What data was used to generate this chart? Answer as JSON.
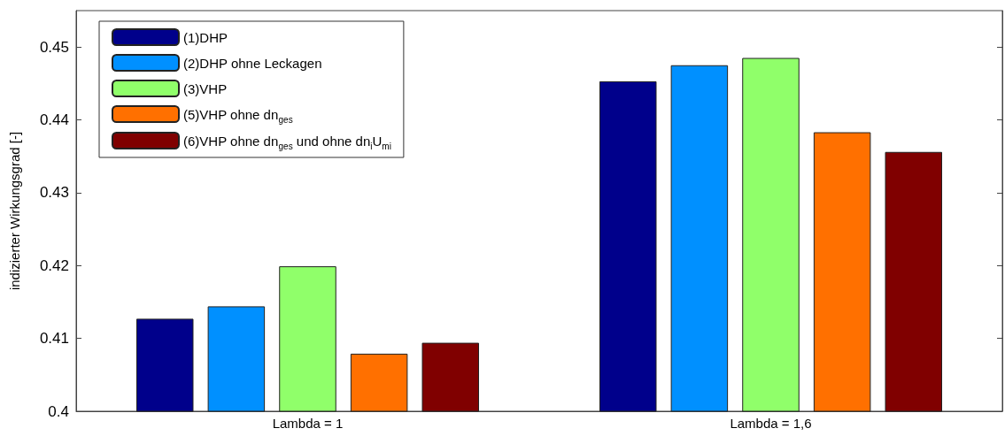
{
  "chart_data": {
    "type": "bar",
    "ylabel": "indizierter Wirkungsgrad [-]",
    "categories": [
      "Lambda = 1",
      "Lambda = 1,6"
    ],
    "series": [
      {
        "name": "(1)DHP",
        "color": "#00008b",
        "values": [
          0.4127,
          0.4453
        ]
      },
      {
        "name": "(2)DHP ohne Leckagen",
        "color": "#0090ff",
        "values": [
          0.4144,
          0.4475
        ]
      },
      {
        "name": "(3)VHP",
        "color": "#90ff6a",
        "values": [
          0.4199,
          0.4485
        ]
      },
      {
        "name": "(5)VHP ohne dn$_{ges}$",
        "color": "#ff7000",
        "values": [
          0.4079,
          0.4383
        ]
      },
      {
        "name": "(6)VHP ohne dn$_{ges}$ und ohne dn$_{i}$U$_{mi}$",
        "color": "#800000",
        "values": [
          0.4094,
          0.4356
        ]
      }
    ],
    "ylim": [
      0.4,
      0.455
    ],
    "yticks": [
      0.4,
      0.41,
      0.42,
      0.43,
      0.44,
      0.45
    ],
    "grid": false,
    "legend": "top left"
  }
}
